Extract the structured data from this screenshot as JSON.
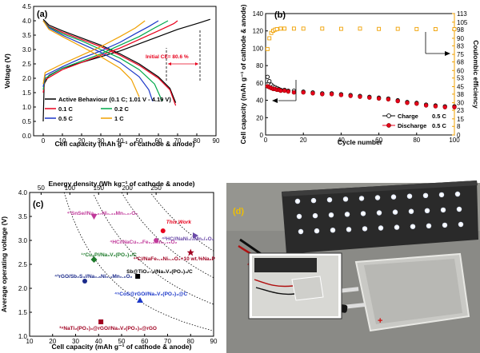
{
  "panels": {
    "a": "(a)",
    "b": "(b)",
    "c": "(c)",
    "d": "(d)"
  },
  "colors": {
    "black": "#000000",
    "red": "#e8001c",
    "green": "#00a84a",
    "blue": "#1a36c8",
    "orange": "#f0a000",
    "magenta": "#c0399a",
    "darkred": "#a00020",
    "darkgreen": "#1d7a2a",
    "navy": "#1a2a8a"
  },
  "chart_data": [
    {
      "panel": "(a)",
      "type": "line",
      "xlabel": "Cell capacity (mAh g⁻¹ of cathode & anode)",
      "ylabel": "Voltage (V)",
      "xlim": [
        -5,
        90
      ],
      "ylim": [
        0,
        4.5
      ],
      "xticks": [
        0,
        10,
        20,
        30,
        40,
        50,
        60,
        70,
        80,
        90
      ],
      "yticks": [
        0.0,
        0.5,
        1.0,
        1.5,
        2.0,
        2.5,
        3.0,
        3.5,
        4.0,
        4.5
      ],
      "annotation": "Initial CE= 80.6 %",
      "series": [
        {
          "name": "Active Behaviour (0.1 C; 1.01 V - 4.19 V)",
          "color": "#000000",
          "charge": [
            [
              0,
              0.5
            ],
            [
              0.5,
              1.8
            ],
            [
              3,
              2.1
            ],
            [
              10,
              2.35
            ],
            [
              20,
              2.55
            ],
            [
              30,
              2.75
            ],
            [
              40,
              2.95
            ],
            [
              50,
              3.2
            ],
            [
              60,
              3.45
            ],
            [
              70,
              3.7
            ],
            [
              80,
              3.9
            ],
            [
              87,
              4.05
            ]
          ],
          "discharge": [
            [
              0,
              4.05
            ],
            [
              3,
              3.85
            ],
            [
              10,
              3.65
            ],
            [
              20,
              3.4
            ],
            [
              30,
              3.15
            ],
            [
              40,
              2.85
            ],
            [
              50,
              2.5
            ],
            [
              60,
              2.05
            ],
            [
              66,
              1.65
            ],
            [
              69,
              1.15
            ]
          ]
        },
        {
          "name": "0.1 C",
          "color": "#e8001c",
          "charge": [
            [
              0,
              1.5
            ],
            [
              1,
              1.95
            ],
            [
              10,
              2.3
            ],
            [
              20,
              2.55
            ],
            [
              30,
              2.8
            ],
            [
              40,
              3.05
            ],
            [
              50,
              3.35
            ],
            [
              60,
              3.65
            ],
            [
              68,
              3.9
            ],
            [
              70,
              4.0
            ]
          ],
          "discharge": [
            [
              0,
              4.0
            ],
            [
              3,
              3.8
            ],
            [
              10,
              3.6
            ],
            [
              20,
              3.35
            ],
            [
              30,
              3.1
            ],
            [
              40,
              2.8
            ],
            [
              50,
              2.45
            ],
            [
              60,
              2.0
            ],
            [
              66,
              1.6
            ],
            [
              69,
              1.05
            ]
          ]
        },
        {
          "name": "0.2 C",
          "color": "#00a84a",
          "charge": [
            [
              0,
              1.6
            ],
            [
              1,
              2.0
            ],
            [
              10,
              2.35
            ],
            [
              20,
              2.6
            ],
            [
              30,
              2.85
            ],
            [
              40,
              3.15
            ],
            [
              50,
              3.45
            ],
            [
              58,
              3.75
            ],
            [
              65,
              4.0
            ]
          ],
          "discharge": [
            [
              0,
              4.0
            ],
            [
              3,
              3.78
            ],
            [
              10,
              3.55
            ],
            [
              20,
              3.3
            ],
            [
              30,
              3.0
            ],
            [
              40,
              2.7
            ],
            [
              50,
              2.3
            ],
            [
              58,
              1.8
            ],
            [
              62,
              1.2
            ]
          ]
        },
        {
          "name": "0.5 C",
          "color": "#1a36c8",
          "charge": [
            [
              0,
              1.7
            ],
            [
              1,
              2.1
            ],
            [
              10,
              2.4
            ],
            [
              20,
              2.7
            ],
            [
              30,
              2.95
            ],
            [
              40,
              3.25
            ],
            [
              48,
              3.55
            ],
            [
              55,
              3.8
            ],
            [
              60,
              4.0
            ]
          ],
          "discharge": [
            [
              0,
              4.0
            ],
            [
              3,
              3.75
            ],
            [
              10,
              3.5
            ],
            [
              20,
              3.2
            ],
            [
              30,
              2.9
            ],
            [
              40,
              2.55
            ],
            [
              50,
              2.05
            ],
            [
              55,
              1.6
            ],
            [
              57,
              1.2
            ]
          ]
        },
        {
          "name": "1 C",
          "color": "#f0a000",
          "charge": [
            [
              0,
              1.8
            ],
            [
              1,
              2.2
            ],
            [
              10,
              2.5
            ],
            [
              20,
              2.8
            ],
            [
              30,
              3.1
            ],
            [
              40,
              3.45
            ],
            [
              48,
              3.75
            ],
            [
              53,
              4.0
            ]
          ],
          "discharge": [
            [
              0,
              4.0
            ],
            [
              3,
              3.7
            ],
            [
              10,
              3.45
            ],
            [
              20,
              3.1
            ],
            [
              30,
              2.75
            ],
            [
              40,
              2.35
            ],
            [
              46,
              1.95
            ],
            [
              50,
              1.35
            ]
          ]
        }
      ]
    },
    {
      "panel": "(b)",
      "type": "scatter",
      "xlabel": "Cycle number",
      "ylabel": "Cell capacity (mAh g⁻¹ of cathode & anode)",
      "ylabel_right": "Coulombic efficiency",
      "xlim": [
        0,
        100
      ],
      "ylim": [
        0,
        140
      ],
      "ylim_right": [
        0,
        113
      ],
      "xticks": [
        0,
        20,
        40,
        60,
        80,
        100
      ],
      "yticks": [
        0,
        20,
        40,
        60,
        80,
        100,
        120,
        140
      ],
      "yticks_right": [
        0,
        8,
        15,
        23,
        30,
        38,
        45,
        53,
        60,
        68,
        75,
        83,
        90,
        98,
        105,
        113
      ],
      "series": [
        {
          "name": "Charge",
          "suffix": "0.5 C",
          "color": "#000000",
          "x": [
            1,
            2,
            3,
            4,
            5,
            6,
            7,
            8,
            10,
            12,
            15,
            20,
            25,
            30,
            35,
            40,
            45,
            50,
            55,
            60,
            65,
            70,
            75,
            80,
            85,
            90,
            95,
            100
          ],
          "y": [
            67,
            62,
            58,
            56,
            55,
            54,
            53,
            52,
            52,
            51,
            51,
            50,
            49,
            48,
            48,
            47,
            46,
            45,
            44,
            43,
            42,
            40,
            38,
            37,
            35,
            34,
            33,
            33
          ]
        },
        {
          "name": "Discharge",
          "suffix": "0.5 C",
          "color": "#e8001c",
          "x": [
            1,
            2,
            3,
            4,
            5,
            6,
            7,
            8,
            10,
            12,
            15,
            20,
            25,
            30,
            35,
            40,
            45,
            50,
            55,
            60,
            65,
            70,
            75,
            80,
            85,
            90,
            95,
            100
          ],
          "y": [
            57,
            56,
            55,
            54,
            54,
            53,
            53,
            52,
            52,
            51,
            50,
            50,
            49,
            48,
            48,
            47,
            46,
            45,
            44,
            43,
            42,
            40,
            38,
            37,
            35,
            34,
            33,
            33
          ]
        },
        {
          "name": "Coulombic efficiency",
          "color": "#f0a000",
          "axis": "right",
          "x": [
            1,
            2,
            3,
            4,
            5,
            6,
            8,
            10,
            15,
            20,
            30,
            40,
            50,
            60,
            70,
            80,
            90,
            100
          ],
          "y": [
            80,
            90,
            95,
            97,
            98,
            98.5,
            99,
            99,
            99,
            99,
            99,
            98.8,
            99,
            98.7,
            98.8,
            98.6,
            98.5,
            98.5
          ]
        }
      ]
    },
    {
      "panel": "(c)",
      "type": "scatter",
      "xlabel": "Cell capacity (mAh g⁻¹ of cathode & anode)",
      "ylabel": "Average operating voltage (V)",
      "xlabel_top": "Energy density (Wh kg⁻¹ of cathode & anode)",
      "xlim": [
        10,
        90
      ],
      "ylim": [
        1.0,
        4.0
      ],
      "xticks": [
        10,
        20,
        30,
        40,
        50,
        60,
        70,
        80,
        90
      ],
      "yticks": [
        1.0,
        1.5,
        2.0,
        2.5,
        3.0,
        3.5,
        4.0
      ],
      "xticks_top": [
        50,
        100,
        150,
        200,
        250
      ],
      "energy_density_isolines_whkg": [
        100,
        150,
        200,
        250
      ],
      "points": [
        {
          "label": "⁴¹SnSe//Na₀.₆₇Ni₀.₃₃Mn₀.₆₇O₂",
          "x": 38,
          "y": 3.5,
          "color": "#c0399a",
          "marker": "triangle-down"
        },
        {
          "label": "This Work",
          "x": 68,
          "y": 3.2,
          "color": "#e8001c",
          "marker": "circle"
        },
        {
          "label": "⁴HC//NaCu₀.₂Fe₀.₃Mn₀.₄₅O₂",
          "x": 65,
          "y": 3.0,
          "color": "#c0399a",
          "marker": "circle"
        },
        {
          "label": "⁴²HC//NaNi₁/₃Mn₁/₃O₂",
          "x": 82,
          "y": 3.1,
          "color": "#6a4aa8",
          "marker": "triangle-right"
        },
        {
          "label": "¹⁷Cu₃P//Na₃V₂(PO₄)₃/C",
          "x": 38,
          "y": 2.6,
          "color": "#1d7a2a",
          "marker": "diamond"
        },
        {
          "label": "⁴²C//NaFe₀.₅Ni₀.₅O₂+10 wt.%Na₂P",
          "x": 80,
          "y": 2.75,
          "color": "#a00020",
          "marker": "star"
        },
        {
          "label": "Sb@TiO₂₋ₓ//Na₃V₂(PO₄)₃/C",
          "x": 57,
          "y": 2.25,
          "color": "#000000",
          "marker": "square"
        },
        {
          "label": "⁴³rGO/Sb₂S₃//Na₀.₈Ni₀.₄Mn₀.₆O₂",
          "x": 34,
          "y": 2.15,
          "color": "#1a2a8a",
          "marker": "circle"
        },
        {
          "label": "⁴⁵CoS@rGO//Na₃V₂(PO₄)₃@C",
          "x": 58,
          "y": 1.75,
          "color": "#1a36c8",
          "marker": "triangle-up"
        },
        {
          "label": "³⁹NaTi₂(PO₄)₃@rGO//Na₃V₂(PO₄)₃@rGO",
          "x": 41,
          "y": 1.3,
          "color": "#a00020",
          "marker": "square"
        }
      ]
    }
  ]
}
